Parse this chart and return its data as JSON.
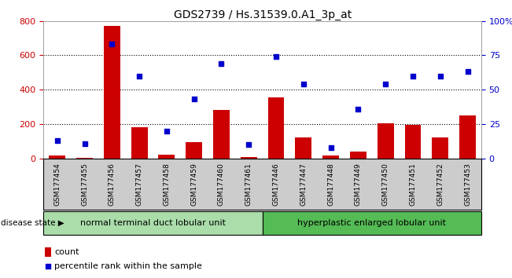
{
  "title": "GDS2739 / Hs.31539.0.A1_3p_at",
  "samples": [
    "GSM177454",
    "GSM177455",
    "GSM177456",
    "GSM177457",
    "GSM177458",
    "GSM177459",
    "GSM177460",
    "GSM177461",
    "GSM177446",
    "GSM177447",
    "GSM177448",
    "GSM177449",
    "GSM177450",
    "GSM177451",
    "GSM177452",
    "GSM177453"
  ],
  "counts": [
    15,
    5,
    770,
    180,
    20,
    95,
    280,
    10,
    355,
    120,
    15,
    38,
    205,
    195,
    120,
    248
  ],
  "percentiles": [
    13,
    11,
    83,
    60,
    20,
    43,
    69,
    10,
    74,
    54,
    8,
    36,
    54,
    60,
    60,
    63
  ],
  "group1_count": 8,
  "group2_count": 8,
  "group1_label": "normal terminal duct lobular unit",
  "group2_label": "hyperplastic enlarged lobular unit",
  "disease_state_label": "disease state",
  "bar_color": "#cc0000",
  "dot_color": "#0000cc",
  "ylim_left": [
    0,
    800
  ],
  "ylim_right": [
    0,
    100
  ],
  "yticks_left": [
    0,
    200,
    400,
    600,
    800
  ],
  "yticks_right": [
    0,
    25,
    50,
    75,
    100
  ],
  "yticklabels_right": [
    "0",
    "25",
    "50",
    "75",
    "100%"
  ],
  "grid_color": "#000000",
  "bg_color": "#ffffff",
  "plot_bg_color": "#ffffff",
  "tick_label_color_left": "#cc0000",
  "tick_label_color_right": "#0000cc",
  "group1_bg": "#aaddaa",
  "group2_bg": "#55bb55",
  "legend_count_label": "count",
  "legend_percentile_label": "percentile rank within the sample",
  "label_bg": "#cccccc"
}
